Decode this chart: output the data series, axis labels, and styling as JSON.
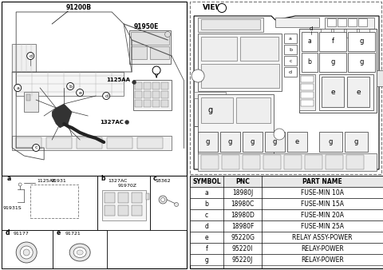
{
  "bg_color": "#ffffff",
  "table_headers": [
    "SYMBOL",
    "PNC",
    "PART NAME"
  ],
  "table_rows": [
    [
      "a",
      "18980J",
      "FUSE-MIN 10A"
    ],
    [
      "b",
      "18980C",
      "FUSE-MIN 15A"
    ],
    [
      "c",
      "18980D",
      "FUSE-MIN 20A"
    ],
    [
      "d",
      "18980F",
      "FUSE-MIN 25A"
    ],
    [
      "e",
      "95220G",
      "RELAY ASSY-POWER"
    ],
    [
      "f",
      "95220I",
      "RELAY-POWER"
    ],
    [
      "g",
      "95220J",
      "RELAY-POWER"
    ]
  ]
}
